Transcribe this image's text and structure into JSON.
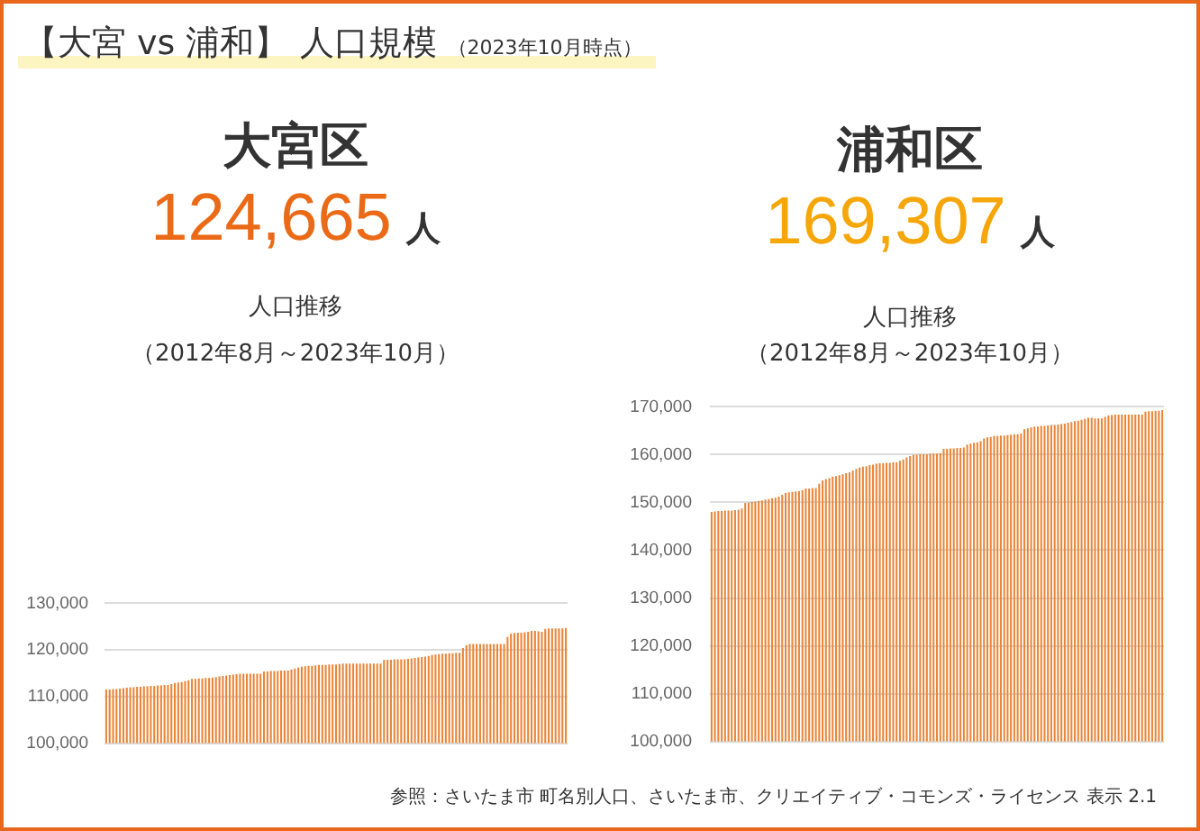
{
  "chart_data": [
    {
      "type": "other",
      "title": "【大宮 vs 浦和】 人口規模",
      "subtitle": "（2023年10月時点）"
    },
    {
      "type": "bar",
      "title": "人口推移",
      "subtitle": "（2012年8月～2023年10月）",
      "annotations": [
        "大宮区",
        "124,665",
        "人"
      ],
      "categories": [
        null,
        null,
        null,
        null,
        null,
        null,
        null,
        null,
        null,
        null,
        null,
        null,
        null,
        null,
        null,
        null,
        null,
        null,
        null,
        null,
        null,
        null,
        null,
        null,
        null,
        null,
        null,
        null,
        null,
        null,
        null,
        null,
        null,
        null,
        null,
        null,
        null,
        null,
        null,
        null,
        null,
        null,
        null,
        null,
        null,
        null,
        null,
        null,
        null,
        null,
        null,
        null,
        null,
        null,
        null,
        null,
        null,
        null,
        null,
        null,
        null,
        null,
        null,
        null,
        null,
        null,
        null,
        null,
        null,
        null,
        null,
        null,
        null,
        null,
        null,
        null,
        null,
        null,
        null,
        null,
        null,
        null,
        null,
        null,
        null,
        null,
        null,
        null,
        null,
        null,
        null,
        null,
        null,
        null,
        null,
        null,
        null,
        null,
        null,
        null,
        null,
        null,
        null,
        null,
        null,
        null,
        null,
        null,
        null,
        null,
        null,
        null,
        null,
        null,
        null,
        null,
        null,
        null,
        null,
        null,
        null,
        null,
        null,
        null,
        null,
        null,
        null,
        null,
        null,
        null,
        null,
        null,
        null,
        null,
        null
      ],
      "values": [
        111500,
        111500,
        111600,
        111600,
        111700,
        111800,
        111900,
        112000,
        112000,
        112100,
        112100,
        112200,
        112200,
        112300,
        112300,
        112400,
        112400,
        112500,
        112500,
        112700,
        112900,
        113000,
        113100,
        113300,
        113500,
        113800,
        113800,
        113900,
        113900,
        114000,
        114000,
        114100,
        114200,
        114300,
        114400,
        114500,
        114600,
        114700,
        114800,
        114900,
        114900,
        114900,
        114900,
        114900,
        114900,
        114900,
        115400,
        115400,
        115500,
        115500,
        115500,
        115600,
        115600,
        115600,
        115800,
        116000,
        116200,
        116400,
        116500,
        116600,
        116600,
        116700,
        116800,
        116800,
        116800,
        116900,
        116900,
        116900,
        117000,
        117100,
        117100,
        117100,
        117100,
        117100,
        117100,
        117100,
        117100,
        117100,
        117100,
        117100,
        117100,
        117900,
        117900,
        117900,
        118000,
        118000,
        118000,
        118000,
        118100,
        118200,
        118300,
        118400,
        118500,
        118600,
        118700,
        118900,
        119000,
        119100,
        119200,
        119200,
        119300,
        119300,
        119400,
        119400,
        120400,
        121000,
        121300,
        121300,
        121300,
        121300,
        121300,
        121300,
        121300,
        121300,
        121300,
        121300,
        121300,
        122800,
        123500,
        123600,
        123700,
        123700,
        123800,
        123900,
        124100,
        124100,
        124000,
        123900,
        124500,
        124600,
        124600,
        124600,
        124600,
        124600,
        124700
      ],
      "color": "#e8863a",
      "ylim": [
        100000,
        130000
      ],
      "yticks": [
        {
          "value": 100000,
          "label": "100,000"
        },
        {
          "value": 110000,
          "label": "110,000"
        },
        {
          "value": 120000,
          "label": "120,000"
        },
        {
          "value": 130000,
          "label": "130,000"
        }
      ],
      "grid": "y"
    },
    {
      "type": "bar",
      "title": "人口推移",
      "subtitle": "（2012年8月～2023年10月）",
      "annotations": [
        "浦和区",
        "169,307",
        "人",
        "参照：さいたま市 町名別人口、さいたま市、クリエイティブ・コモンズ・ライセンス 表示 2.1"
      ],
      "categories": [
        null,
        null,
        null,
        null,
        null,
        null,
        null,
        null,
        null,
        null,
        null,
        null,
        null,
        null,
        null,
        null,
        null,
        null,
        null,
        null,
        null,
        null,
        null,
        null,
        null,
        null,
        null,
        null,
        null,
        null,
        null,
        null,
        null,
        null,
        null,
        null,
        null,
        null,
        null,
        null,
        null,
        null,
        null,
        null,
        null,
        null,
        null,
        null,
        null,
        null,
        null,
        null,
        null,
        null,
        null,
        null,
        null,
        null,
        null,
        null,
        null,
        null,
        null,
        null,
        null,
        null,
        null,
        null,
        null,
        null,
        null,
        null,
        null,
        null,
        null,
        null,
        null,
        null,
        null,
        null,
        null,
        null,
        null,
        null,
        null,
        null,
        null,
        null,
        null,
        null,
        null,
        null,
        null,
        null,
        null,
        null,
        null,
        null,
        null,
        null,
        null,
        null,
        null,
        null,
        null,
        null,
        null,
        null,
        null,
        null,
        null,
        null,
        null,
        null,
        null,
        null,
        null,
        null,
        null,
        null,
        null,
        null,
        null,
        null,
        null,
        null,
        null,
        null,
        null,
        null,
        null,
        null,
        null,
        null,
        null
      ],
      "values": [
        148000,
        148100,
        148200,
        148200,
        148300,
        148300,
        148300,
        148400,
        148500,
        148700,
        149900,
        150000,
        150100,
        150200,
        150300,
        150400,
        150600,
        150700,
        150900,
        151000,
        151200,
        151600,
        152000,
        152100,
        152200,
        152300,
        152400,
        152600,
        152900,
        152900,
        153000,
        153000,
        153900,
        154600,
        154900,
        155100,
        155400,
        155500,
        155700,
        155900,
        156100,
        156300,
        156700,
        157000,
        157300,
        157500,
        157600,
        157800,
        157900,
        158100,
        158200,
        158200,
        158300,
        158300,
        158400,
        158400,
        158700,
        159000,
        159400,
        159700,
        160000,
        160000,
        160100,
        160100,
        160100,
        160200,
        160200,
        160200,
        160300,
        161200,
        161200,
        161300,
        161300,
        161400,
        161400,
        161500,
        162100,
        162300,
        162500,
        162600,
        162800,
        163400,
        163600,
        163700,
        163900,
        163900,
        164000,
        164000,
        164100,
        164200,
        164300,
        164300,
        164400,
        165300,
        165500,
        165700,
        165900,
        165900,
        166000,
        166000,
        166100,
        166200,
        166200,
        166300,
        166400,
        166500,
        166700,
        166800,
        167000,
        167100,
        167300,
        167500,
        167700,
        167700,
        167600,
        167600,
        167600,
        167900,
        168200,
        168300,
        168400,
        168400,
        168400,
        168400,
        168400,
        168400,
        168400,
        168400,
        168400,
        169000,
        169100,
        169100,
        169200,
        169200,
        169300
      ],
      "color": "#e8863a",
      "ylim": [
        100000,
        170000
      ],
      "yticks": [
        {
          "value": 100000,
          "label": "100,000"
        },
        {
          "value": 110000,
          "label": "110,000"
        },
        {
          "value": 120000,
          "label": "120,000"
        },
        {
          "value": 130000,
          "label": "130,000"
        },
        {
          "value": 140000,
          "label": "140,000"
        },
        {
          "value": 150000,
          "label": "150,000"
        },
        {
          "value": 160000,
          "label": "160,000"
        },
        {
          "value": 170000,
          "label": "170,000"
        }
      ],
      "grid": "y"
    }
  ]
}
